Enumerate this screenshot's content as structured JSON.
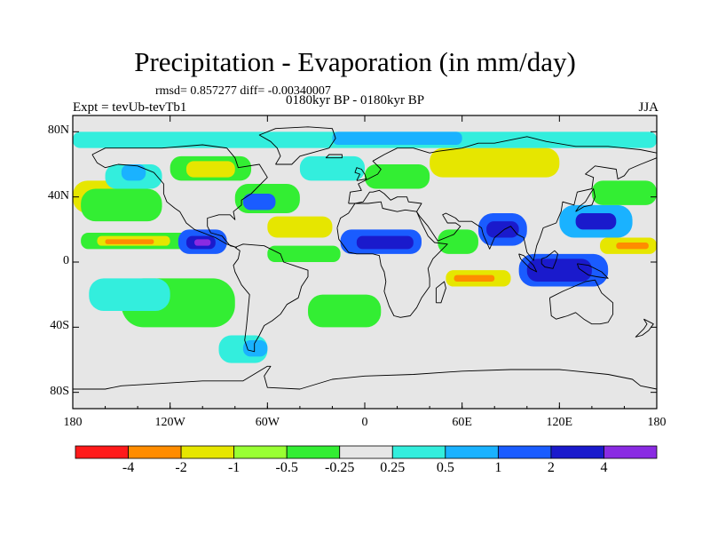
{
  "title": "Precipitation - Evaporation (in mm/day)",
  "stats_line": "rmsd= 0.857277  diff= -0.00340007",
  "period_line": "0180kyr BP - 0180kyr BP",
  "expt_line": "Expt = tevUb-tevTb1",
  "season": "JJA",
  "land_color": "#e6e6e6",
  "chart_data": {
    "type": "heatmap",
    "variable": "Precipitation - Evaporation",
    "units": "mm/day",
    "projection": "cylindrical equidistant",
    "xlim": [
      -180,
      180
    ],
    "ylim": [
      -90,
      90
    ],
    "x_ticks": [
      {
        "value": -180,
        "label": "180"
      },
      {
        "value": -120,
        "label": "120W"
      },
      {
        "value": -60,
        "label": "60W"
      },
      {
        "value": 0,
        "label": "0"
      },
      {
        "value": 60,
        "label": "60E"
      },
      {
        "value": 120,
        "label": "120E"
      },
      {
        "value": 180,
        "label": "180"
      }
    ],
    "y_ticks": [
      {
        "value": 80,
        "label": "80N"
      },
      {
        "value": 40,
        "label": "40N"
      },
      {
        "value": 0,
        "label": "0"
      },
      {
        "value": -40,
        "label": "40S"
      },
      {
        "value": -80,
        "label": "80S"
      }
    ],
    "colorbar": {
      "levels": [
        -4,
        -2,
        -1,
        -0.5,
        -0.25,
        0.25,
        0.5,
        1,
        2,
        4
      ],
      "level_labels": [
        "-4",
        "-2",
        "-1",
        "-0.5",
        "-0.25",
        "0.25",
        "0.5",
        "1",
        "2",
        "4"
      ],
      "colors": [
        "#ff1a1a",
        "#ff8c00",
        "#e6e600",
        "#99ff33",
        "#33ee33",
        "#e6e6e6",
        "#33eedd",
        "#1ab2ff",
        "#1a5cff",
        "#1a1acc",
        "#8a2be2"
      ]
    },
    "regions": [
      {
        "name": "n-pacific-yellow",
        "lon": [
          -180,
          -140
        ],
        "lat": [
          30,
          50
        ],
        "class": 2
      },
      {
        "name": "n-pacific-green",
        "lon": [
          -175,
          -125
        ],
        "lat": [
          25,
          45
        ],
        "class": 4
      },
      {
        "name": "n-pacific-cyan",
        "lon": [
          -160,
          -125
        ],
        "lat": [
          45,
          60
        ],
        "class": 6
      },
      {
        "name": "n-pacific-blue",
        "lon": [
          -150,
          -135
        ],
        "lat": [
          50,
          60
        ],
        "class": 7
      },
      {
        "name": "itcz-pacific-green",
        "lon": [
          -175,
          -95
        ],
        "lat": [
          8,
          18
        ],
        "class": 4
      },
      {
        "name": "itcz-pacific-yellow",
        "lon": [
          -165,
          -120
        ],
        "lat": [
          10,
          16
        ],
        "class": 2
      },
      {
        "name": "itcz-pacific-orange",
        "lon": [
          -160,
          -130
        ],
        "lat": [
          11,
          14
        ],
        "class": 1
      },
      {
        "name": "e-pacific-warmpool",
        "lon": [
          -115,
          -85
        ],
        "lat": [
          5,
          20
        ],
        "class": 8
      },
      {
        "name": "e-pacific-warmpool-core",
        "lon": [
          -110,
          -92
        ],
        "lat": [
          8,
          16
        ],
        "class": 9
      },
      {
        "name": "e-pacific-warmpool-purple",
        "lon": [
          -105,
          -95
        ],
        "lat": [
          10,
          14
        ],
        "class": 10
      },
      {
        "name": "n-atlantic-storm-green",
        "lon": [
          -80,
          -40
        ],
        "lat": [
          30,
          48
        ],
        "class": 4
      },
      {
        "name": "n-atlantic-storm-blue",
        "lon": [
          -75,
          -55
        ],
        "lat": [
          32,
          42
        ],
        "class": 8
      },
      {
        "name": "atlantic-itcz-green",
        "lon": [
          -60,
          -15
        ],
        "lat": [
          0,
          10
        ],
        "class": 4
      },
      {
        "name": "subtrop-n-atlantic-yellow",
        "lon": [
          -60,
          -20
        ],
        "lat": [
          15,
          28
        ],
        "class": 2
      },
      {
        "name": "w-africa-monsoon-blue",
        "lon": [
          -15,
          35
        ],
        "lat": [
          5,
          20
        ],
        "class": 8
      },
      {
        "name": "w-africa-monsoon-core",
        "lon": [
          -5,
          30
        ],
        "lat": [
          8,
          16
        ],
        "class": 9
      },
      {
        "name": "arabian-sea-green",
        "lon": [
          45,
          70
        ],
        "lat": [
          5,
          20
        ],
        "class": 4
      },
      {
        "name": "indian-monsoon-blue",
        "lon": [
          70,
          100
        ],
        "lat": [
          10,
          30
        ],
        "class": 8
      },
      {
        "name": "indian-monsoon-core",
        "lon": [
          75,
          95
        ],
        "lat": [
          15,
          25
        ],
        "class": 9
      },
      {
        "name": "s-indian-ocean-yellow",
        "lon": [
          50,
          90
        ],
        "lat": [
          -15,
          -5
        ],
        "class": 2
      },
      {
        "name": "s-indian-ocean-orange",
        "lon": [
          55,
          80
        ],
        "lat": [
          -12,
          -8
        ],
        "class": 1
      },
      {
        "name": "maritime-continent-blue",
        "lon": [
          95,
          150
        ],
        "lat": [
          -15,
          5
        ],
        "class": 8
      },
      {
        "name": "maritime-continent-core",
        "lon": [
          100,
          140
        ],
        "lat": [
          -12,
          2
        ],
        "class": 9
      },
      {
        "name": "nw-pacific-blue",
        "lon": [
          120,
          165
        ],
        "lat": [
          15,
          35
        ],
        "class": 7
      },
      {
        "name": "nw-pacific-core",
        "lon": [
          130,
          155
        ],
        "lat": [
          20,
          30
        ],
        "class": 9
      },
      {
        "name": "w-pacific-yellow",
        "lon": [
          145,
          180
        ],
        "lat": [
          5,
          15
        ],
        "class": 2
      },
      {
        "name": "w-pacific-orange",
        "lon": [
          155,
          175
        ],
        "lat": [
          8,
          12
        ],
        "class": 1
      },
      {
        "name": "kuroshio-green",
        "lon": [
          140,
          180
        ],
        "lat": [
          35,
          50
        ],
        "class": 4
      },
      {
        "name": "siberia-orange",
        "lon": [
          60,
          100
        ],
        "lat": [
          55,
          68
        ],
        "class": 1
      },
      {
        "name": "siberia-yellow",
        "lon": [
          40,
          120
        ],
        "lat": [
          52,
          70
        ],
        "class": 2
      },
      {
        "name": "europe-green",
        "lon": [
          0,
          40
        ],
        "lat": [
          45,
          60
        ],
        "class": 4
      },
      {
        "name": "n-atlantic-cyan",
        "lon": [
          -40,
          0
        ],
        "lat": [
          50,
          65
        ],
        "class": 6
      },
      {
        "name": "canada-green",
        "lon": [
          -120,
          -70
        ],
        "lat": [
          50,
          65
        ],
        "class": 4
      },
      {
        "name": "canada-yellow",
        "lon": [
          -110,
          -80
        ],
        "lat": [
          52,
          62
        ],
        "class": 2
      },
      {
        "name": "s-pacific-green",
        "lon": [
          -150,
          -80
        ],
        "lat": [
          -40,
          -10
        ],
        "class": 4
      },
      {
        "name": "s-pacific-cyan",
        "lon": [
          -170,
          -120
        ],
        "lat": [
          -30,
          -10
        ],
        "class": 6
      },
      {
        "name": "s-atlantic-green",
        "lon": [
          -35,
          10
        ],
        "lat": [
          -40,
          -20
        ],
        "class": 4
      },
      {
        "name": "southern-ocean-cyan",
        "lon": [
          -90,
          -60
        ],
        "lat": [
          -62,
          -45
        ],
        "class": 6
      },
      {
        "name": "southern-ocean-blue",
        "lon": [
          -75,
          -60
        ],
        "lat": [
          -58,
          -48
        ],
        "class": 7
      },
      {
        "name": "arctic-cyan",
        "lon": [
          -180,
          180
        ],
        "lat": [
          70,
          80
        ],
        "class": 6
      },
      {
        "name": "arctic-blue",
        "lon": [
          -20,
          60
        ],
        "lat": [
          72,
          80
        ],
        "class": 7
      }
    ]
  }
}
